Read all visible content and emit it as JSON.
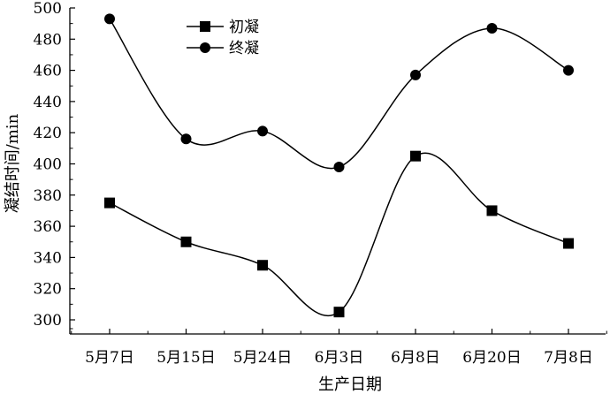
{
  "chart_data": {
    "type": "line",
    "categories": [
      "5月7日",
      "5月15日",
      "5月24日",
      "6月3日",
      "6月8日",
      "6月20日",
      "7月8日"
    ],
    "series": [
      {
        "name": "初凝",
        "marker": "square",
        "values": [
          375,
          350,
          335,
          305,
          405,
          370,
          349
        ]
      },
      {
        "name": "终凝",
        "marker": "circle",
        "values": [
          493,
          416,
          421,
          398,
          457,
          487,
          460
        ]
      }
    ],
    "xlabel": "生产日期",
    "ylabel": "凝结时间/min",
    "ylim": [
      300,
      500
    ],
    "yticks": [
      300,
      320,
      340,
      360,
      380,
      400,
      420,
      440,
      460,
      480,
      500
    ],
    "grid": false,
    "legend_position": "top-left",
    "line_style": "smooth",
    "colors": {
      "line": "#000000",
      "background": "#ffffff"
    }
  }
}
